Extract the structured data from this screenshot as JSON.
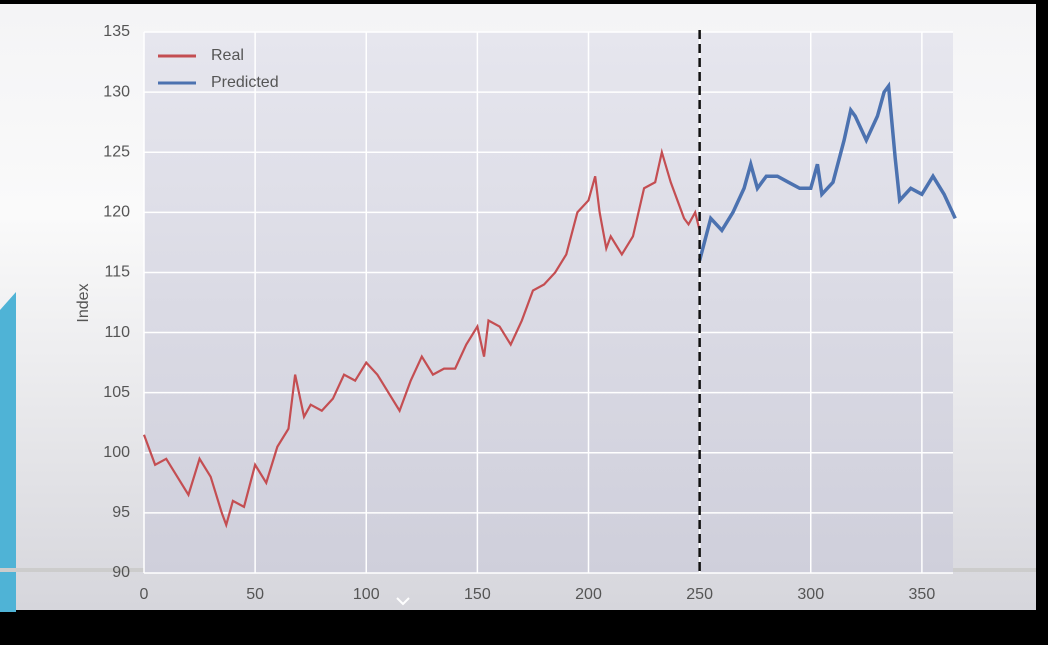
{
  "chart_data": {
    "type": "line",
    "y_label": "Index",
    "series": [
      {
        "name": "Real",
        "color": "#c44e52",
        "x": [
          0,
          5,
          10,
          15,
          20,
          25,
          30,
          35,
          37,
          40,
          45,
          50,
          55,
          60,
          65,
          68,
          72,
          75,
          80,
          85,
          90,
          95,
          100,
          105,
          110,
          115,
          120,
          125,
          130,
          135,
          140,
          145,
          150,
          153,
          155,
          160,
          165,
          170,
          175,
          180,
          185,
          190,
          195,
          200,
          203,
          205,
          208,
          210,
          215,
          220,
          225,
          230,
          233,
          237,
          240,
          243,
          245,
          248,
          250
        ],
        "values": [
          101.5,
          99,
          99.5,
          98,
          96.5,
          99.5,
          98,
          95,
          94,
          96,
          95.5,
          99,
          97.5,
          100.5,
          102,
          106.5,
          103,
          104,
          103.5,
          104.5,
          106.5,
          106,
          107.5,
          106.5,
          105,
          103.5,
          106,
          108,
          106.5,
          107,
          107,
          109,
          110.5,
          108,
          111,
          110.5,
          109,
          111,
          113.5,
          114,
          115,
          116.5,
          120,
          121,
          123,
          120,
          117,
          118,
          116.5,
          118,
          122,
          122.5,
          125,
          122.5,
          121,
          119.5,
          119,
          120,
          118.5
        ]
      },
      {
        "name": "Predicted",
        "color": "#4c72b0",
        "x": [
          250,
          255,
          260,
          265,
          270,
          273,
          276,
          280,
          285,
          290,
          295,
          300,
          303,
          305,
          310,
          315,
          318,
          320,
          325,
          330,
          333,
          335,
          338,
          340,
          345,
          350,
          355,
          360,
          365
        ],
        "values": [
          116,
          119.5,
          118.5,
          120,
          122,
          124,
          122,
          123,
          123,
          122.5,
          122,
          122,
          124,
          121.5,
          122.5,
          126,
          128.5,
          128,
          126,
          128,
          130,
          130.5,
          124.5,
          121,
          122,
          121.5,
          123,
          121.5,
          119.5
        ]
      }
    ],
    "split_x": 250,
    "xlim": [
      0,
      364
    ],
    "ylim": [
      90,
      135
    ],
    "xticks": [
      0,
      50,
      100,
      150,
      200,
      250,
      300,
      350
    ],
    "yticks": [
      90,
      95,
      100,
      105,
      110,
      115,
      120,
      125,
      130,
      135
    ],
    "grid": true,
    "legend": "upper-left"
  }
}
